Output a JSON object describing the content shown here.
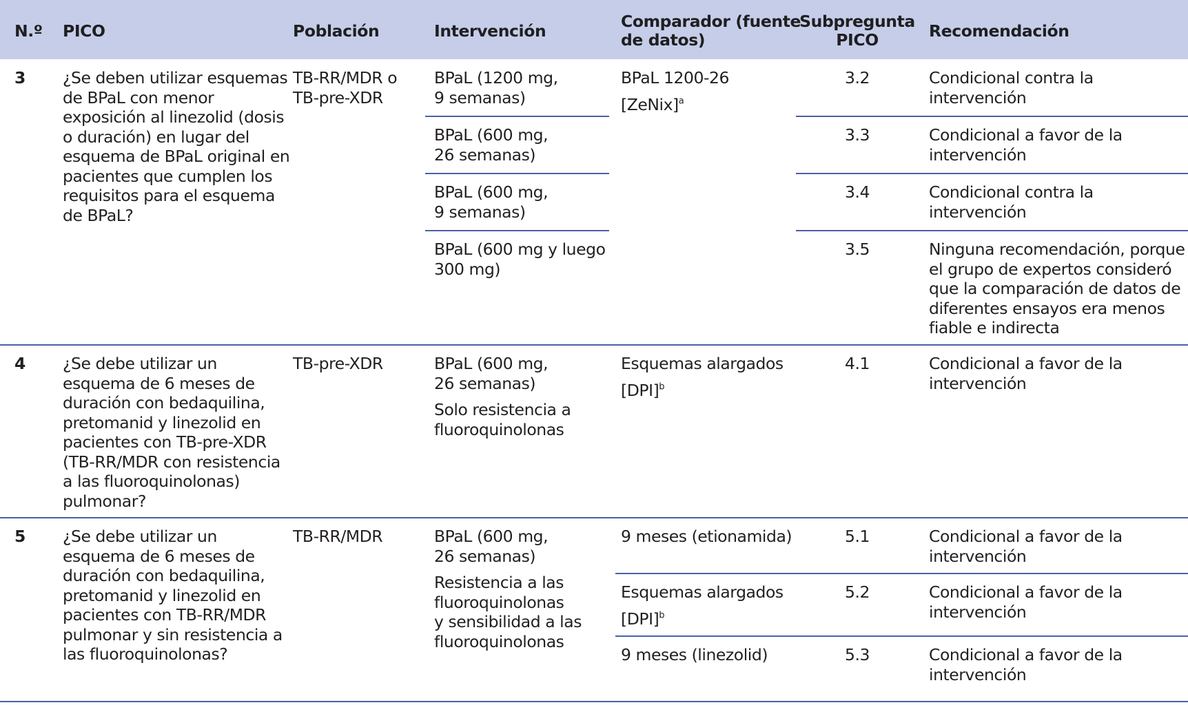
{
  "header": {
    "num": "N.º",
    "pico": "PICO",
    "poblacion": "Población",
    "intervencion": "Intervención",
    "comparador": "Comparador (fuente\nde datos)",
    "subpregunta": "Subpregunta\nPICO",
    "recomendacion": "Recomendación"
  },
  "rows": [
    {
      "num": "3",
      "pico": "¿Se deben utilizar esquemas\nde BPaL con menor\nexposición al linezolid (dosis\no duración) en lugar del\nesquema de BPaL original en\npacientes que cumplen los\nrequisitos para el esquema\nde BPaL?",
      "poblacion": "TB-RR/MDR o\nTB-pre-XDR",
      "comparador": "BPaL 1200-26",
      "comparador_src": "[ZeNix]",
      "comparador_sup": "a",
      "sub": [
        {
          "intervencion": "BPaL (1200 mg,\n9 semanas)",
          "subpregunta": "3.2",
          "recomendacion": "Condicional contra la intervención"
        },
        {
          "intervencion": "BPaL (600 mg,\n26 semanas)",
          "subpregunta": "3.3",
          "recomendacion": "Condicional a favor de la\nintervención"
        },
        {
          "intervencion": "BPaL (600 mg,\n9 semanas)",
          "subpregunta": "3.4",
          "recomendacion": "Condicional contra la intervención"
        },
        {
          "intervencion": "BPaL (600 mg y luego\n300 mg)",
          "subpregunta": "3.5",
          "recomendacion": "Ninguna recomendación, porque\nel grupo de expertos consideró\nque la comparación de datos de\ndiferentes ensayos era menos\nfiable e indirecta"
        }
      ]
    },
    {
      "num": "4",
      "pico": "¿Se debe utilizar un\nesquema de 6 meses de\nduración con bedaquilina,\npretomanid y linezolid en\npacientes con TB-pre-XDR\n(TB-RR/MDR con resistencia\na las fluoroquinolonas)\npulmonar?",
      "poblacion": "TB-pre-XDR",
      "intervencion": "BPaL (600 mg,\n26 semanas)",
      "intervencion_note": "Solo resistencia a\nfluoroquinolonas",
      "comparador": "Esquemas alargados",
      "comparador_src": "[DPI]",
      "comparador_sup": "b",
      "subpregunta": "4.1",
      "recomendacion": "Condicional a favor de la\nintervención"
    },
    {
      "num": "5",
      "pico": "¿Se debe utilizar un\nesquema de 6 meses de\nduración con bedaquilina,\npretomanid y linezolid en\npacientes con TB-RR/MDR\npulmonar y sin resistencia a\nlas fluoroquinolonas?",
      "poblacion": "TB-RR/MDR",
      "intervencion": "BPaL (600 mg,\n26 semanas)",
      "intervencion_note": "Resistencia a las\nfluoroquinolonas\ny sensibilidad a las\nfluoroquinolonas",
      "sub": [
        {
          "comparador": "9 meses (etionamida)",
          "subpregunta": "5.1",
          "recomendacion": "Condicional a favor de la\nintervención"
        },
        {
          "comparador": "Esquemas alargados",
          "comparador_src": "[DPI]",
          "comparador_sup": "b",
          "subpregunta": "5.2",
          "recomendacion": "Condicional a favor de la\nintervención"
        },
        {
          "comparador": "9 meses (linezolid)",
          "subpregunta": "5.3",
          "recomendacion": "Condicional a favor de la\nintervención"
        }
      ]
    }
  ],
  "colors": {
    "header_bg": "#c5cde9",
    "rule": "#4b5fa8",
    "text": "#231f20"
  }
}
